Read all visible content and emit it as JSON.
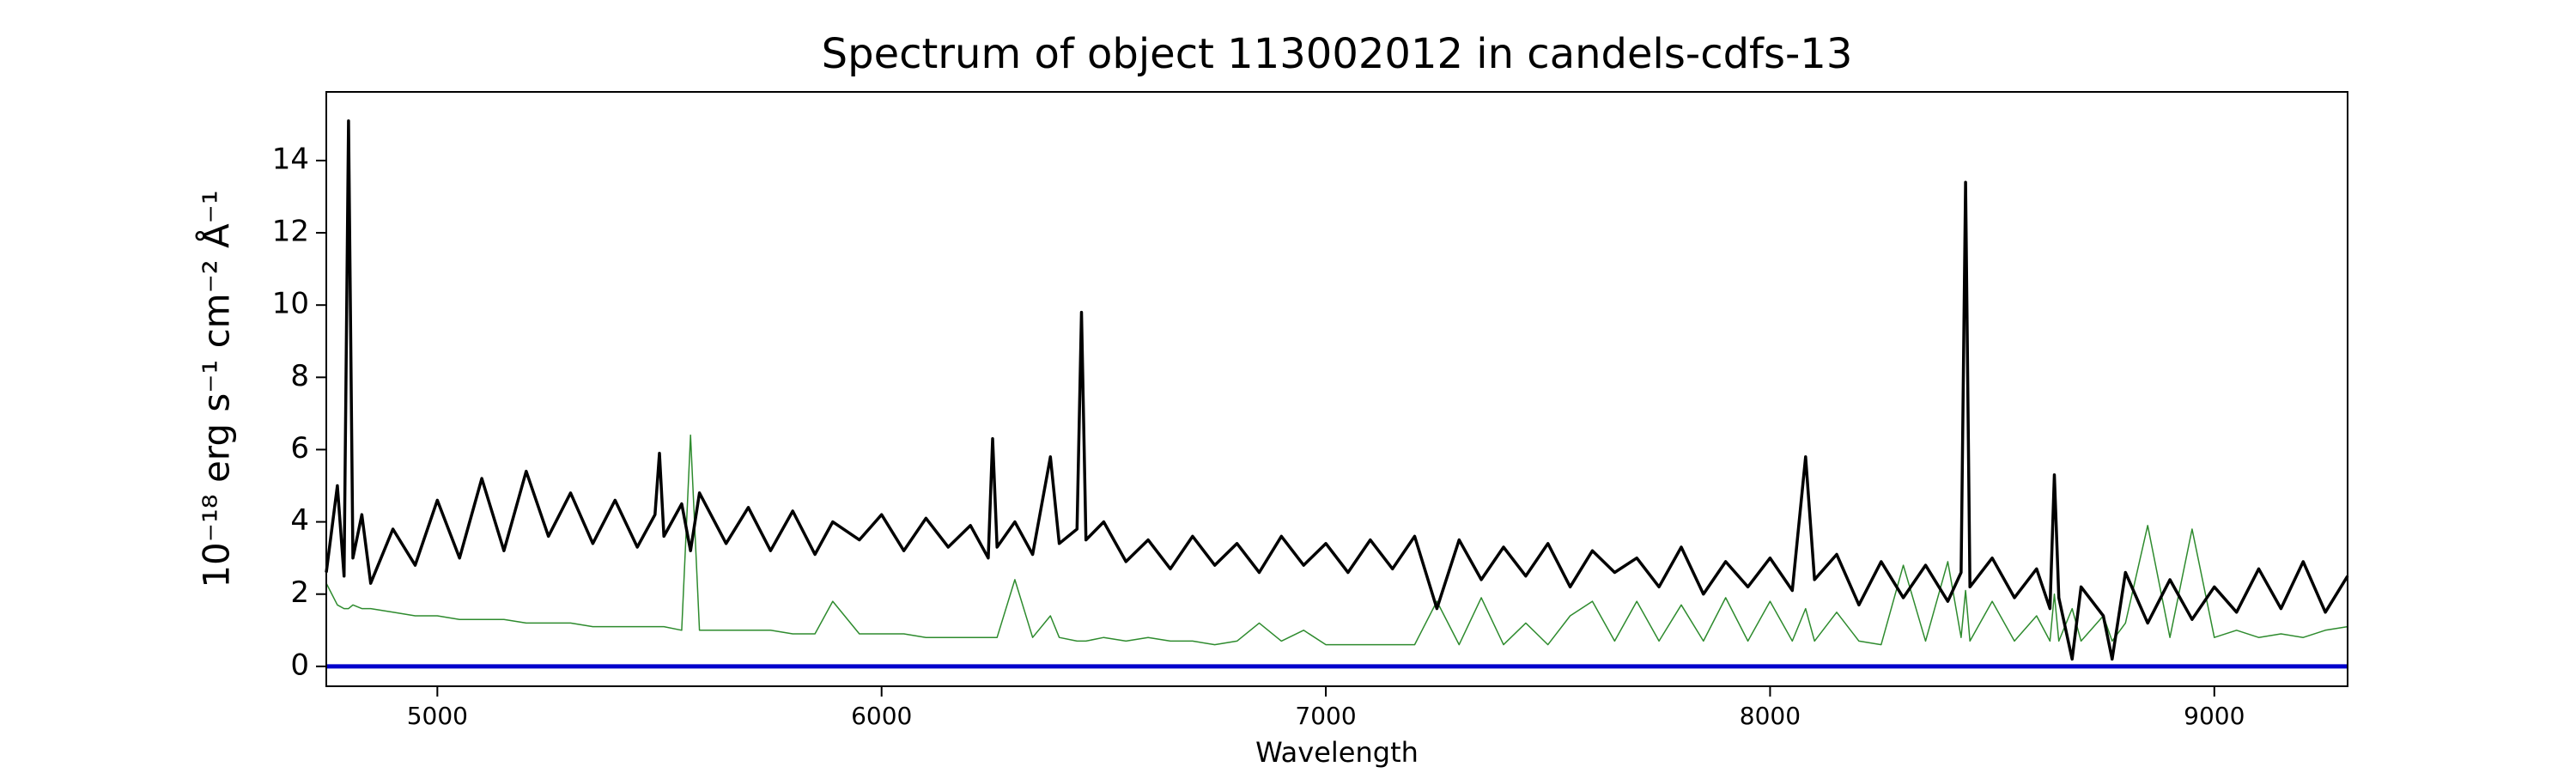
{
  "chart_data": {
    "type": "line",
    "title": "Spectrum of object 113002012 in candels-cdfs-13",
    "xlabel": "Wavelength",
    "ylabel": "10⁻¹⁸ erg s⁻¹ cm⁻² Å⁻¹",
    "x": [
      4750,
      4775,
      4790,
      4800,
      4810,
      4830,
      4850,
      4900,
      4950,
      5000,
      5050,
      5100,
      5150,
      5200,
      5250,
      5300,
      5350,
      5400,
      5450,
      5490,
      5500,
      5510,
      5550,
      5570,
      5590,
      5650,
      5700,
      5750,
      5800,
      5850,
      5890,
      5950,
      6000,
      6050,
      6100,
      6150,
      6200,
      6240,
      6250,
      6260,
      6300,
      6340,
      6380,
      6400,
      6440,
      6450,
      6460,
      6500,
      6550,
      6600,
      6650,
      6700,
      6750,
      6800,
      6850,
      6900,
      6950,
      7000,
      7050,
      7100,
      7150,
      7200,
      7250,
      7300,
      7350,
      7400,
      7450,
      7500,
      7550,
      7600,
      7650,
      7700,
      7750,
      7800,
      7850,
      7900,
      7950,
      8000,
      8050,
      8080,
      8100,
      8150,
      8200,
      8250,
      8300,
      8350,
      8400,
      8430,
      8440,
      8450,
      8500,
      8550,
      8600,
      8630,
      8640,
      8650,
      8680,
      8700,
      8750,
      8770,
      8800,
      8850,
      8900,
      8950,
      9000,
      9050,
      9100,
      9150,
      9200,
      9250,
      9300
    ],
    "series": [
      {
        "color": "#000000",
        "values": [
          2.6,
          5.0,
          2.5,
          15.1,
          3.0,
          4.2,
          2.3,
          3.8,
          2.8,
          4.6,
          3.0,
          5.2,
          3.2,
          5.4,
          3.6,
          4.8,
          3.4,
          4.6,
          3.3,
          4.2,
          5.9,
          3.6,
          4.5,
          3.2,
          4.8,
          3.4,
          4.4,
          3.2,
          4.3,
          3.1,
          4.0,
          3.5,
          4.2,
          3.2,
          4.1,
          3.3,
          3.9,
          3.0,
          6.3,
          3.3,
          4.0,
          3.1,
          5.8,
          3.4,
          3.8,
          9.8,
          3.5,
          4.0,
          2.9,
          3.5,
          2.7,
          3.6,
          2.8,
          3.4,
          2.6,
          3.6,
          2.8,
          3.4,
          2.6,
          3.5,
          2.7,
          3.6,
          1.6,
          3.5,
          2.4,
          3.3,
          2.5,
          3.4,
          2.2,
          3.2,
          2.6,
          3.0,
          2.2,
          3.3,
          2.0,
          2.9,
          2.2,
          3.0,
          2.1,
          5.8,
          2.4,
          3.1,
          1.7,
          2.9,
          1.9,
          2.8,
          1.8,
          2.6,
          13.4,
          2.2,
          3.0,
          1.9,
          2.7,
          1.6,
          5.3,
          1.9,
          0.2,
          2.2,
          1.4,
          0.2,
          2.6,
          1.2,
          2.4,
          1.3,
          2.2,
          1.5,
          2.7,
          1.6,
          2.9,
          1.5,
          2.5
        ]
      },
      {
        "color": "#2e8b2e",
        "values": [
          2.3,
          1.7,
          1.6,
          1.6,
          1.7,
          1.6,
          1.6,
          1.5,
          1.4,
          1.4,
          1.3,
          1.3,
          1.3,
          1.2,
          1.2,
          1.2,
          1.1,
          1.1,
          1.1,
          1.1,
          1.1,
          1.1,
          1.0,
          6.4,
          1.0,
          1.0,
          1.0,
          1.0,
          0.9,
          0.9,
          1.8,
          0.9,
          0.9,
          0.9,
          0.8,
          0.8,
          0.8,
          0.8,
          0.8,
          0.8,
          2.4,
          0.8,
          1.4,
          0.8,
          0.7,
          0.7,
          0.7,
          0.8,
          0.7,
          0.8,
          0.7,
          0.7,
          0.6,
          0.7,
          1.2,
          0.7,
          1.0,
          0.6,
          0.6,
          0.6,
          0.6,
          0.6,
          1.8,
          0.6,
          1.9,
          0.6,
          1.2,
          0.6,
          1.4,
          1.8,
          0.7,
          1.8,
          0.7,
          1.7,
          0.7,
          1.9,
          0.7,
          1.8,
          0.7,
          1.6,
          0.7,
          1.5,
          0.7,
          0.6,
          2.8,
          0.7,
          2.9,
          0.8,
          2.1,
          0.7,
          1.8,
          0.7,
          1.4,
          0.7,
          2.0,
          0.7,
          1.6,
          0.7,
          1.4,
          0.7,
          1.2,
          3.9,
          0.8,
          3.8,
          0.8,
          1.0,
          0.8,
          0.9,
          0.8,
          1.0,
          1.1
        ]
      }
    ],
    "hlines": [
      {
        "value": 0,
        "color": "#0000cc"
      }
    ],
    "xlim": [
      4750,
      9300
    ],
    "xticks": [
      5000,
      6000,
      7000,
      8000,
      9000
    ],
    "ylim": [
      -0.55,
      15.9
    ],
    "yticks": [
      0,
      2,
      4,
      6,
      8,
      10,
      12,
      14
    ],
    "grid": false
  }
}
